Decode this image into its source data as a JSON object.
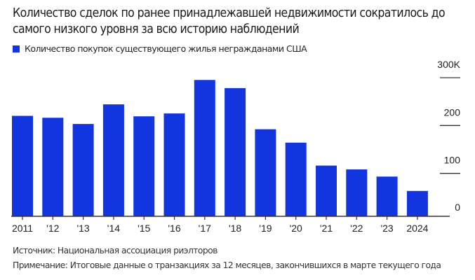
{
  "title": "Количество сделок по ранее принадлежавшей недвижимости сократилось до самого низкого уровня за всю историю наблюдений",
  "footer": {
    "source": "Источник: Национальная ассоциация риэлторов",
    "note": "Примечание: Итоговые данные о транзакциях за 12 месяцев, закончившихся в марте текущего года"
  },
  "colors": {
    "bar": "#1235e0",
    "axis": "#333333",
    "tick": "#333333"
  },
  "chart_data": {
    "type": "bar",
    "title": "Количество сделок по ранее принадлежавшей недвижимости сократилось до самого низкого уровня за всю историю наблюдений",
    "xlabel": "",
    "ylabel": "",
    "categories": [
      "2011",
      "'12",
      "'13",
      "'14",
      "'15",
      "'16",
      "'17",
      "'18",
      "'19",
      "'20",
      "'21",
      "'22",
      "'23",
      "2024"
    ],
    "series": [
      {
        "name": "Количество покупок существующего жилья негражданами США",
        "values": [
          210,
          206,
          193,
          234,
          209,
          215,
          285,
          268,
          182,
          154,
          106,
          98,
          83,
          53
        ]
      }
    ],
    "ylim": [
      0,
      300
    ],
    "yticks": [
      0,
      100,
      200,
      300
    ],
    "ytick_labels": [
      "0",
      "100",
      "200",
      "300K"
    ],
    "y_axis_side": "right",
    "grid": false,
    "legend": "top-left"
  }
}
